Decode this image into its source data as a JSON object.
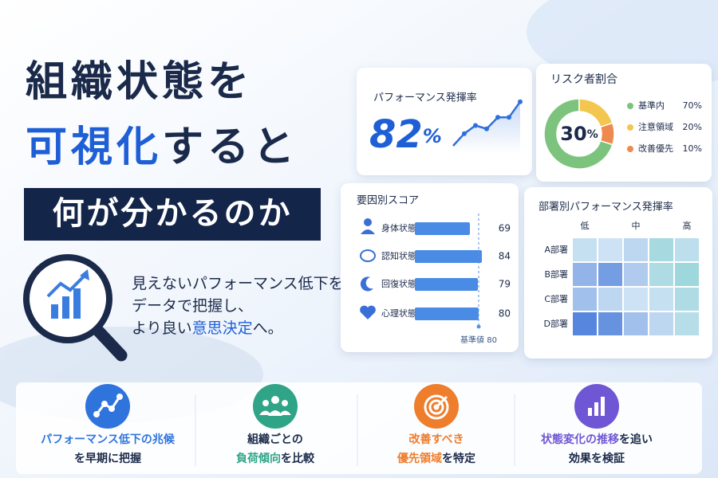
{
  "headline": {
    "line1": "組織状態を",
    "line2": [
      {
        "text": "可視化",
        "emphasis": true
      },
      {
        "text": "すると"
      }
    ],
    "line3": "何が分かるのか"
  },
  "lead": {
    "lines": [
      [
        {
          "text": "見えないパフォーマンス低下を"
        }
      ],
      [
        {
          "text": "データで把握し、"
        }
      ],
      [
        {
          "text": "より良い"
        },
        {
          "text": "意思決定",
          "emphasis": true
        },
        {
          "text": "へ。"
        }
      ]
    ]
  },
  "panels": {
    "performance": {
      "title": "パフォーマンス発揮率",
      "value": 82,
      "unit": "%",
      "trend": {
        "values": [
          20,
          38,
          50,
          45,
          62,
          62,
          85
        ],
        "ylim": [
          0,
          100
        ],
        "color": "#2f6fdc"
      }
    },
    "risk": {
      "title": "リスク者割合",
      "center_value": 30,
      "unit": "%",
      "series": [
        {
          "name": "基準内",
          "value": 70,
          "value_label": "70%",
          "color": "#7cc47e"
        },
        {
          "name": "注意領域",
          "value": 20,
          "value_label": "20%",
          "color": "#f3c64f"
        },
        {
          "name": "改善優先",
          "value": 10,
          "value_label": "10%",
          "color": "#ef8a4f"
        }
      ]
    },
    "factors": {
      "title": "要因別スコア",
      "categories": [
        "身体状態",
        "認知状態",
        "回復状態",
        "心理状態"
      ],
      "values": [
        69,
        84,
        79,
        80
      ],
      "xlim": [
        0,
        100
      ],
      "color": "#4a8be6",
      "reference": {
        "label": "基準値",
        "value": 80
      }
    },
    "heatmap": {
      "title": "部署別パフォーマンス発揮率",
      "columns": [
        "低",
        null,
        "中",
        null,
        "高"
      ],
      "rows": [
        "A部署",
        "B部署",
        "C部署",
        "D部署"
      ],
      "values": [
        [
          55,
          50,
          45,
          75,
          60
        ],
        [
          30,
          20,
          40,
          70,
          80
        ],
        [
          35,
          45,
          50,
          55,
          70
        ],
        [
          10,
          15,
          35,
          45,
          65
        ]
      ],
      "scale": {
        "range": [
          0,
          100
        ],
        "colors": [
          "#3a6fd8",
          "#cde2f4",
          "#7fd0cc"
        ]
      }
    }
  },
  "features": [
    {
      "color": "#2f74dd",
      "lines": [
        [
          {
            "text": "パフォーマンス低下の兆候",
            "emphasis": true
          }
        ],
        [
          {
            "text": "を早期に把握"
          }
        ]
      ]
    },
    {
      "color": "#2fa487",
      "lines": [
        [
          {
            "text": "組織ごとの"
          }
        ],
        [
          {
            "text": "負荷傾向",
            "emphasis": true
          },
          {
            "text": "を比較"
          }
        ]
      ]
    },
    {
      "color": "#ee7d2c",
      "lines": [
        [
          {
            "text": "改善すべき",
            "emphasis": true
          }
        ],
        [
          {
            "text": "優先領域",
            "emphasis": true
          },
          {
            "text": "を特定"
          }
        ]
      ]
    },
    {
      "color": "#6f56d4",
      "lines": [
        [
          {
            "text": "状態変化の推移",
            "emphasis": true
          },
          {
            "text": "を追い"
          }
        ],
        [
          {
            "text": "効果を検証"
          }
        ]
      ]
    }
  ]
}
